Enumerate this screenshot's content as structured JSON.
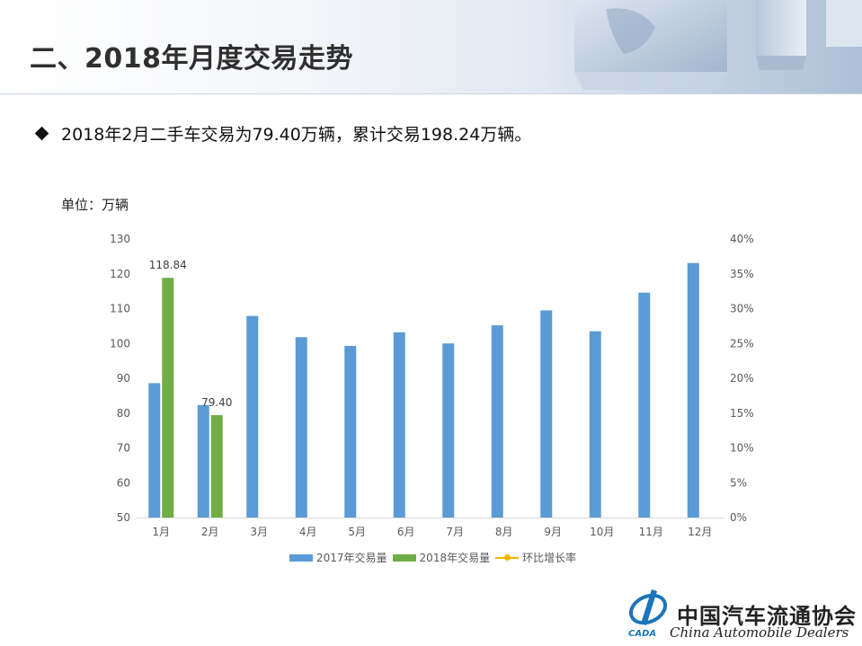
{
  "page": {
    "title": "二、2018年月度交易走势",
    "bullet": "2018年2月二手车交易为79.40万辆，累计交易198.24万辆。",
    "unit": "单位：万辆"
  },
  "chart_data": {
    "type": "bar",
    "categories": [
      "1月",
      "2月",
      "3月",
      "4月",
      "5月",
      "6月",
      "7月",
      "8月",
      "9月",
      "10月",
      "11月",
      "12月"
    ],
    "series": [
      {
        "name": "2017年交易量",
        "axis": "left",
        "color": "#5b9bd5",
        "values": [
          88.6,
          82.3,
          107.9,
          101.8,
          99.3,
          103.2,
          100.0,
          105.2,
          109.5,
          103.5,
          114.6,
          123.1
        ]
      },
      {
        "name": "2018年交易量",
        "axis": "left",
        "color": "#70ad47",
        "values": [
          118.84,
          79.4,
          null,
          null,
          null,
          null,
          null,
          null,
          null,
          null,
          null,
          null
        ]
      },
      {
        "name": "环比增长率",
        "axis": "right",
        "type": "line",
        "color": "#f5b400",
        "values": [
          null,
          null,
          null,
          null,
          null,
          null,
          null,
          null,
          null,
          null,
          null,
          null
        ]
      }
    ],
    "data_labels": {
      "2018年交易量": [
        "118.84",
        "79.40"
      ]
    },
    "y_left": {
      "min": 50,
      "max": 130,
      "ticks": [
        "50",
        "60",
        "70",
        "80",
        "90",
        "100",
        "110",
        "120",
        "130"
      ]
    },
    "y_right": {
      "min": 0,
      "max": 40,
      "ticks": [
        "0%",
        "5%",
        "10%",
        "15%",
        "20%",
        "25%",
        "30%",
        "35%",
        "40%"
      ]
    },
    "legend": {
      "placement": "bottom",
      "entries": [
        "2017年交易量",
        "2018年交易量",
        "环比增长率"
      ]
    },
    "grid": false
  },
  "logo": {
    "mark_text": "CADA",
    "name_cn": "中国汽车流通协会",
    "name_en": "China  Automobile Dealers"
  }
}
